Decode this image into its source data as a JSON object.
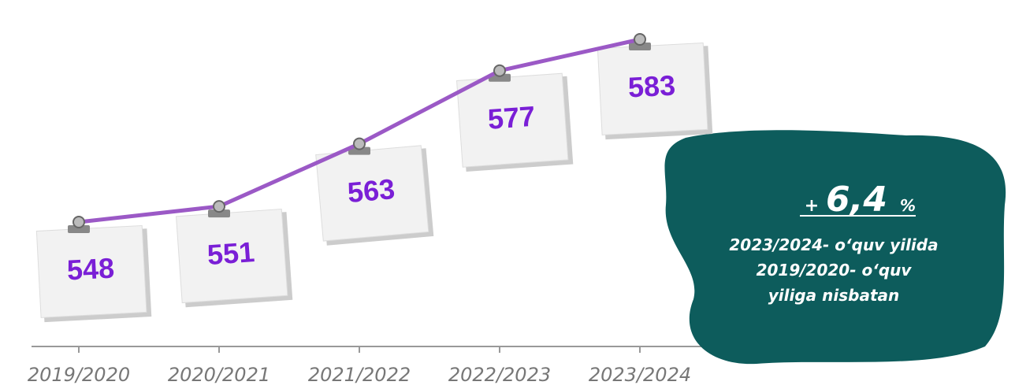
{
  "chart_data": {
    "type": "line",
    "categories": [
      "2019/2020",
      "2020/2021",
      "2021/2022",
      "2022/2023",
      "2023/2024"
    ],
    "series": [
      {
        "name": "",
        "color": "#9b59c6",
        "values": [
          548,
          551,
          563,
          577,
          583
        ]
      }
    ],
    "annotation": {
      "sign": "+",
      "value": "6,4",
      "unit": "%",
      "lines": [
        "2023/2024- o‘quv yilida",
        "2019/2020- o‘quv",
        "yiliga nisbatan"
      ]
    }
  }
}
